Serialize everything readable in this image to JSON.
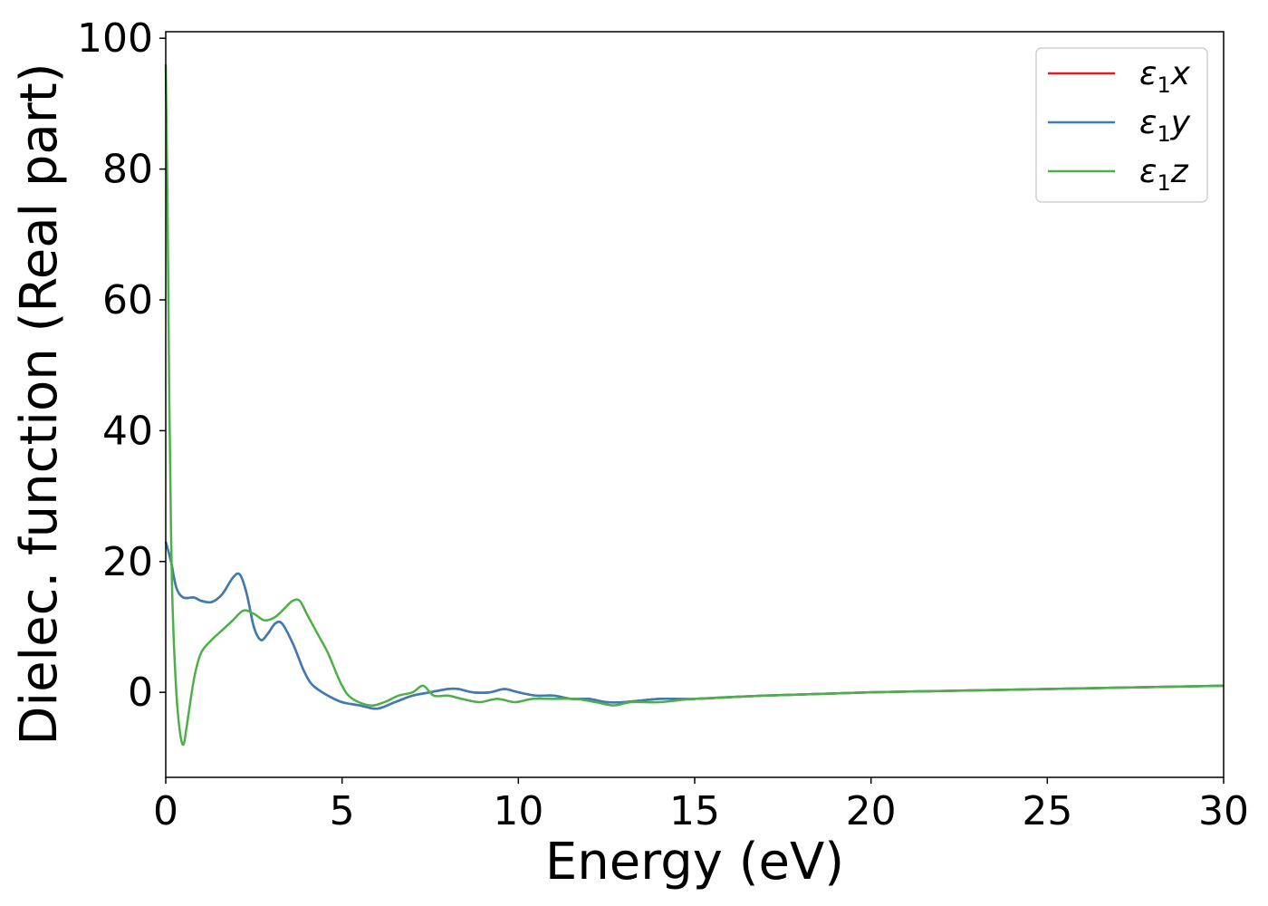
{
  "chart_data": {
    "type": "line",
    "xlabel": "Energy (eV)",
    "ylabel": "Dielec. function (Real part)",
    "xlim": [
      0,
      30
    ],
    "ylim": [
      -13,
      101
    ],
    "xticks": [
      0,
      5,
      10,
      15,
      20,
      25,
      30
    ],
    "yticks": [
      0,
      20,
      40,
      60,
      80,
      100
    ],
    "grid": false,
    "legend_position": "top-right",
    "series": [
      {
        "name": "ε1x",
        "color": "#e41a1c",
        "x": [
          0,
          0.15,
          0.3,
          0.5,
          0.8,
          1.0,
          1.3,
          1.6,
          1.9,
          2.1,
          2.3,
          2.5,
          2.7,
          2.9,
          3.1,
          3.3,
          3.6,
          3.9,
          4.1,
          4.3,
          4.6,
          5.0,
          5.5,
          6.0,
          6.5,
          7.0,
          7.5,
          8.0,
          8.3,
          8.7,
          9.2,
          9.6,
          10.0,
          10.5,
          11.0,
          11.5,
          12.0,
          12.5,
          13.0,
          14.0,
          15.0,
          17.0,
          20.0,
          25.0,
          30.0
        ],
        "values": [
          23,
          20,
          16,
          14.5,
          14.5,
          14,
          13.8,
          15,
          17.5,
          18,
          15,
          10,
          8,
          9,
          10.5,
          10.5,
          7.5,
          3.5,
          1.5,
          0.5,
          -0.5,
          -1.5,
          -2,
          -2.5,
          -1.5,
          -0.5,
          0,
          0.5,
          0.5,
          0,
          0,
          0.5,
          0,
          -0.5,
          -0.5,
          -1,
          -1,
          -1.5,
          -1.5,
          -1,
          -1,
          -0.5,
          0,
          0.5,
          1
        ]
      },
      {
        "name": "ε1y",
        "color": "#377eb8",
        "x": [
          0,
          0.15,
          0.3,
          0.5,
          0.8,
          1.0,
          1.3,
          1.6,
          1.9,
          2.1,
          2.3,
          2.5,
          2.7,
          2.9,
          3.1,
          3.3,
          3.6,
          3.9,
          4.1,
          4.3,
          4.6,
          5.0,
          5.5,
          6.0,
          6.5,
          7.0,
          7.5,
          8.0,
          8.3,
          8.7,
          9.2,
          9.6,
          10.0,
          10.5,
          11.0,
          11.5,
          12.0,
          12.5,
          13.0,
          14.0,
          15.0,
          17.0,
          20.0,
          25.0,
          30.0
        ],
        "values": [
          23,
          20,
          16,
          14.5,
          14.5,
          14,
          13.8,
          15,
          17.5,
          18,
          15,
          10,
          8,
          9,
          10.5,
          10.5,
          7.5,
          3.5,
          1.5,
          0.5,
          -0.5,
          -1.5,
          -2,
          -2.5,
          -1.5,
          -0.5,
          0,
          0.5,
          0.5,
          0,
          0,
          0.5,
          0,
          -0.5,
          -0.5,
          -1,
          -1,
          -1.5,
          -1.5,
          -1,
          -1,
          -0.5,
          0,
          0.5,
          1
        ]
      },
      {
        "name": "ε1z",
        "color": "#4daf4a",
        "x": [
          0,
          0.05,
          0.1,
          0.15,
          0.2,
          0.3,
          0.4,
          0.5,
          0.6,
          0.8,
          1.0,
          1.3,
          1.6,
          1.9,
          2.2,
          2.5,
          2.8,
          3.1,
          3.4,
          3.6,
          3.8,
          4.0,
          4.3,
          4.6,
          5.0,
          5.3,
          5.8,
          6.2,
          6.6,
          7.0,
          7.3,
          7.6,
          8.0,
          8.4,
          8.9,
          9.4,
          9.9,
          10.4,
          11.0,
          11.6,
          12.2,
          12.7,
          13.2,
          14.0,
          15.0,
          17.0,
          20.0,
          25.0,
          30.0
        ],
        "values": [
          96,
          75,
          45,
          25,
          12,
          0,
          -6,
          -8,
          -5,
          2,
          6,
          8,
          9.5,
          11,
          12.5,
          12,
          11,
          11.5,
          13,
          14,
          14,
          12,
          9,
          6,
          1,
          -1,
          -2,
          -1.5,
          -0.5,
          0,
          1,
          -0.5,
          -0.5,
          -1,
          -1.5,
          -1,
          -1.5,
          -1,
          -1,
          -1,
          -1.5,
          -2,
          -1.5,
          -1.5,
          -1,
          -0.5,
          0,
          0.5,
          1
        ]
      }
    ]
  }
}
